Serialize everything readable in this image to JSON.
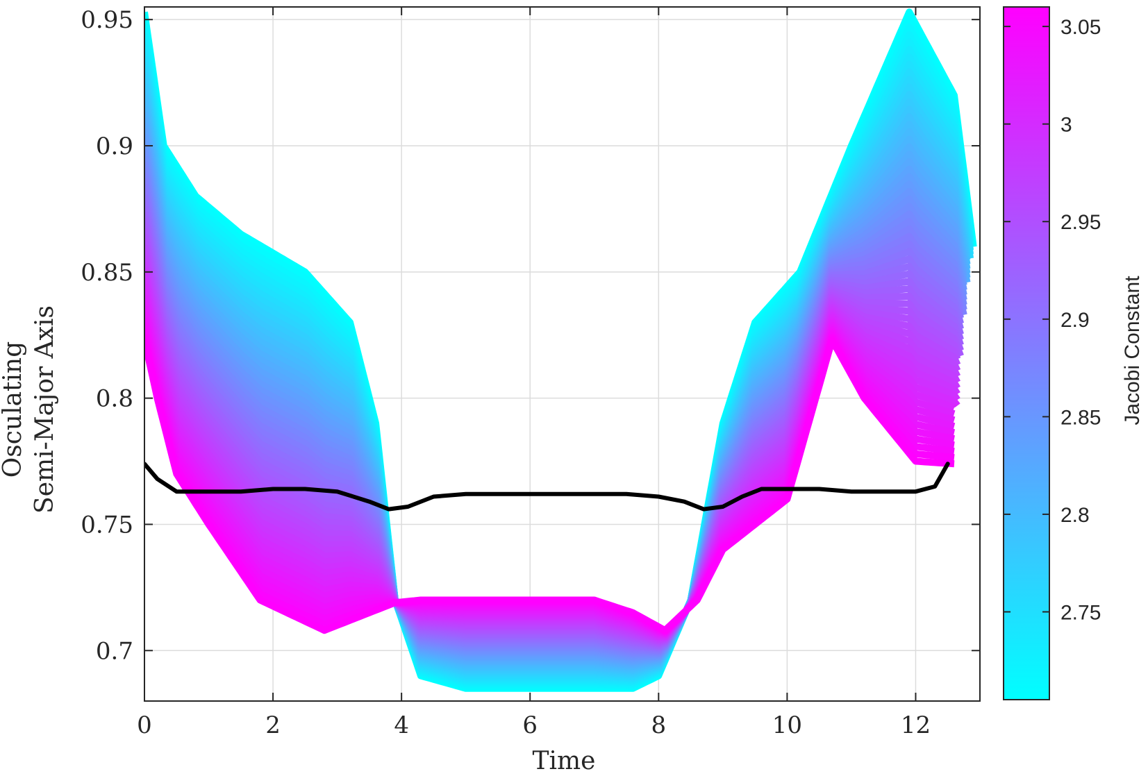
{
  "chart_data": {
    "type": "line",
    "xlabel": "Time",
    "ylabel_lines": [
      "Osculating",
      "Semi-Major Axis"
    ],
    "xlim": [
      0,
      13
    ],
    "ylim": [
      0.68,
      0.955
    ],
    "xticks": [
      0,
      2,
      4,
      6,
      8,
      10,
      12
    ],
    "yticks": [
      0.7,
      0.75,
      0.8,
      0.85,
      0.9,
      0.95
    ],
    "xtick_labels": [
      "0",
      "2",
      "4",
      "6",
      "8",
      "10",
      "12"
    ],
    "ytick_labels": [
      "0.7",
      "0.75",
      "0.8",
      "0.85",
      "0.9",
      "0.95"
    ],
    "grid": true,
    "colorbar": {
      "label": "Jacobi Constant",
      "range": [
        2.705,
        3.06
      ],
      "ticks": [
        2.75,
        2.8,
        2.85,
        2.9,
        2.95,
        3.0,
        3.05
      ],
      "tick_labels": [
        "2.75",
        "2.8",
        "2.85",
        "2.9",
        "2.95",
        "3",
        "3.05"
      ],
      "colormap": [
        "#00ffff",
        "#ff00ff"
      ]
    },
    "family": {
      "description_free": true,
      "count": 60,
      "jacobi_range": [
        2.705,
        3.06
      ],
      "low_c_curve": {
        "x": [
          0,
          0.3,
          0.8,
          1.5,
          2.5,
          3.2,
          3.6,
          3.9,
          4.3,
          5,
          6,
          7,
          7.6,
          8,
          8.5,
          9,
          9.5,
          10.2,
          11,
          11.9,
          12.6,
          12.9
        ],
        "y": [
          0.953,
          0.9,
          0.88,
          0.865,
          0.85,
          0.83,
          0.79,
          0.72,
          0.69,
          0.685,
          0.685,
          0.685,
          0.685,
          0.69,
          0.72,
          0.79,
          0.83,
          0.85,
          0.9,
          0.953,
          0.92,
          0.86
        ]
      },
      "high_c_curve": {
        "x": [
          0,
          0.2,
          0.5,
          1,
          1.8,
          2.8,
          3.5,
          3.9,
          4.3,
          5,
          6,
          7,
          7.6,
          8.1,
          8.6,
          9,
          10,
          10.7,
          11.2,
          12,
          12.6
        ],
        "y": [
          0.823,
          0.8,
          0.77,
          0.75,
          0.72,
          0.708,
          0.715,
          0.719,
          0.72,
          0.72,
          0.72,
          0.72,
          0.715,
          0.708,
          0.72,
          0.74,
          0.76,
          0.823,
          0.8,
          0.775,
          0.774
        ]
      }
    },
    "series": [
      {
        "color": "#000000",
        "x": [
          0,
          0.2,
          0.5,
          1,
          1.5,
          2,
          2.5,
          3,
          3.5,
          3.8,
          4.1,
          4.5,
          5,
          6,
          7,
          7.5,
          8,
          8.4,
          8.7,
          9,
          9.3,
          9.6,
          10,
          10.5,
          11,
          11.5,
          12,
          12.3,
          12.5
        ],
        "y": [
          0.774,
          0.768,
          0.763,
          0.763,
          0.763,
          0.764,
          0.764,
          0.763,
          0.759,
          0.756,
          0.757,
          0.761,
          0.762,
          0.762,
          0.762,
          0.762,
          0.761,
          0.759,
          0.756,
          0.757,
          0.761,
          0.764,
          0.764,
          0.764,
          0.763,
          0.763,
          0.763,
          0.765,
          0.774
        ]
      }
    ]
  }
}
